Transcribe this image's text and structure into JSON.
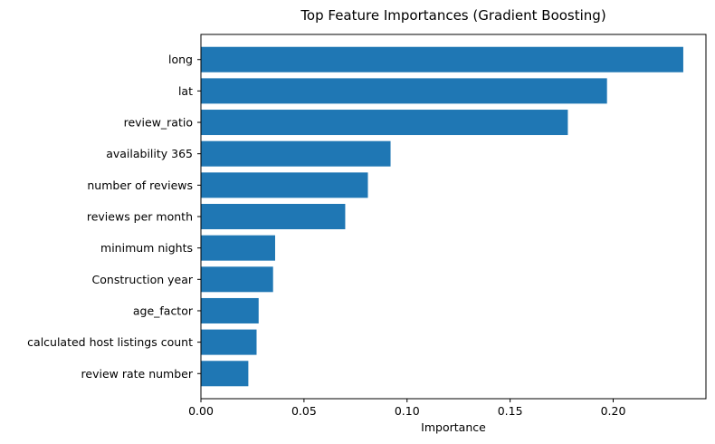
{
  "chart_data": {
    "type": "bar",
    "orientation": "horizontal",
    "title": "Top Feature Importances (Gradient Boosting)",
    "xlabel": "Importance",
    "ylabel": "",
    "categories": [
      "long",
      "lat",
      "review_ratio",
      "availability 365",
      "number of reviews",
      "reviews per month",
      "minimum nights",
      "Construction year",
      "age_factor",
      "calculated host listings count",
      "review rate number"
    ],
    "values": [
      0.234,
      0.197,
      0.178,
      0.092,
      0.081,
      0.07,
      0.036,
      0.035,
      0.028,
      0.027,
      0.023
    ],
    "xlim": [
      0,
      0.245
    ],
    "xticks": [
      0.0,
      0.05,
      0.1,
      0.15,
      0.2
    ],
    "xtick_labels": [
      "0.00",
      "0.05",
      "0.10",
      "0.15",
      "0.20"
    ],
    "bar_color": "#1f77b4",
    "grid": false,
    "legend": false
  }
}
